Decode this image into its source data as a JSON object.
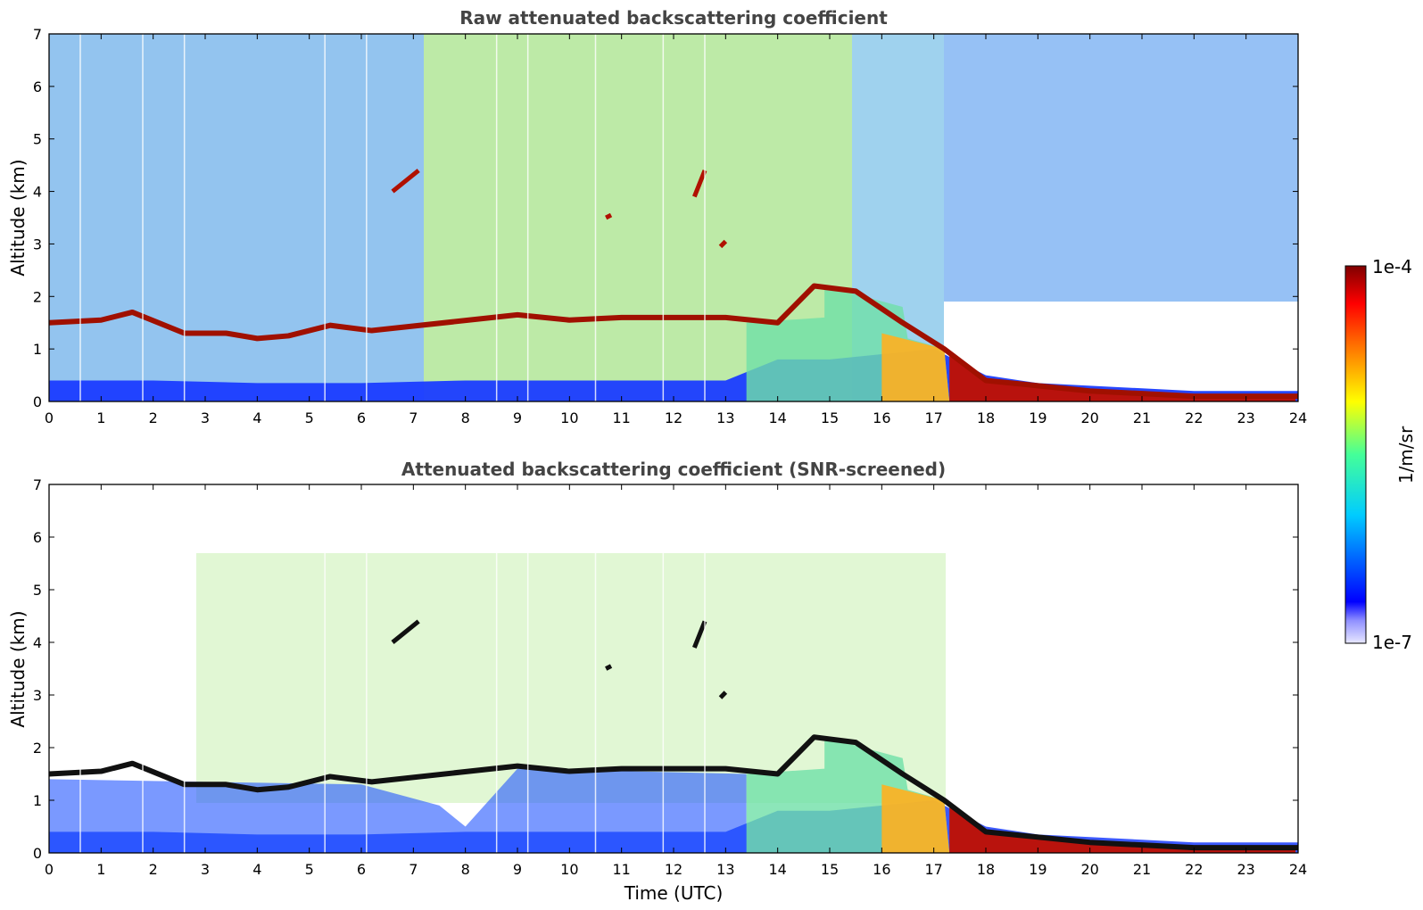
{
  "chart_data": [
    {
      "type": "heatmap",
      "title": "Raw attenuated backscattering coefficient",
      "xlabel": "",
      "ylabel": "Altitude (km)",
      "xlim": [
        0,
        24
      ],
      "ylim": [
        0,
        7
      ],
      "x_ticks": [
        "0",
        "1",
        "2",
        "3",
        "4",
        "5",
        "6",
        "7",
        "8",
        "9",
        "10",
        "11",
        "12",
        "13",
        "14",
        "15",
        "16",
        "17",
        "18",
        "19",
        "20",
        "21",
        "22",
        "23",
        "24"
      ],
      "y_ticks": [
        "0",
        "1",
        "2",
        "3",
        "4",
        "5",
        "6",
        "7"
      ],
      "colormap": "jet",
      "color_scale": "log",
      "clim": [
        "1e-7",
        "1e-4"
      ],
      "layers": [
        {
          "name": "boundary layer",
          "x": [
            0,
            2,
            4,
            6,
            8,
            10,
            12,
            13,
            14,
            15,
            16,
            17,
            18,
            19,
            20,
            21,
            22,
            23,
            24
          ],
          "top_km": [
            0.4,
            0.4,
            0.35,
            0.35,
            0.4,
            0.4,
            0.4,
            0.4,
            0.8,
            0.8,
            0.9,
            1.0,
            0.5,
            0.35,
            0.3,
            0.25,
            0.2,
            0.2,
            0.2
          ]
        },
        {
          "name": "cloud layer",
          "x": [
            0,
            1,
            1.6,
            2.6,
            3.4,
            4,
            4.6,
            5.4,
            6.2,
            9,
            10,
            11,
            12,
            13,
            14,
            14.7,
            15.5,
            16.4,
            17.2,
            18,
            19,
            20,
            21,
            22,
            23,
            24
          ],
          "base_km": [
            1.5,
            1.55,
            1.7,
            1.3,
            1.3,
            1.2,
            1.25,
            1.45,
            1.35,
            1.65,
            1.55,
            1.6,
            1.6,
            1.6,
            1.5,
            2.2,
            2.1,
            1.5,
            1.0,
            0.4,
            0.3,
            0.2,
            0.15,
            0.1,
            0.1,
            0.1
          ]
        }
      ]
    },
    {
      "type": "heatmap",
      "title": "Attenuated backscattering coefficient (SNR-screened)",
      "xlabel": "Time (UTC)",
      "ylabel": "Altitude (km)",
      "xlim": [
        0,
        24
      ],
      "ylim": [
        0,
        7
      ],
      "x_ticks": [
        "0",
        "1",
        "2",
        "3",
        "4",
        "5",
        "6",
        "7",
        "8",
        "9",
        "10",
        "11",
        "12",
        "13",
        "14",
        "15",
        "16",
        "17",
        "18",
        "19",
        "20",
        "21",
        "22",
        "23",
        "24"
      ],
      "y_ticks": [
        "0",
        "1",
        "2",
        "3",
        "4",
        "5",
        "6",
        "7"
      ],
      "colormap": "jet",
      "color_scale": "log",
      "clim": [
        "1e-7",
        "1e-4"
      ]
    }
  ],
  "colorbar": {
    "label": "1/m/sr",
    "max_label": "1e-4",
    "min_label": "1e-7"
  }
}
